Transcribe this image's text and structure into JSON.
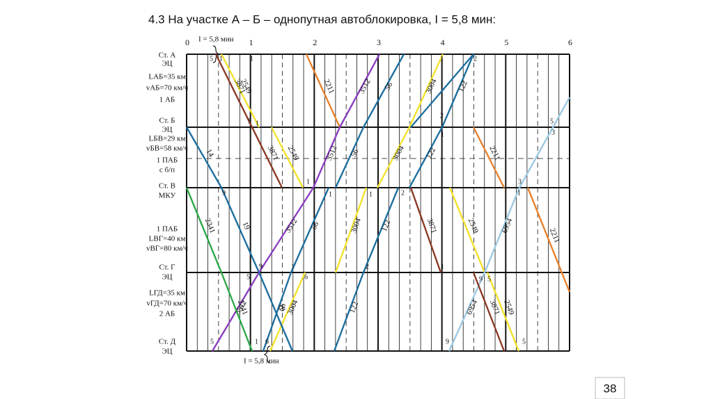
{
  "title": "4.3 На участке А – Б – однопутная автоблокировка, I = 5,8 мин:",
  "hours": [
    "0",
    "1",
    "2",
    "3",
    "4",
    "5",
    "6"
  ],
  "station_labels": [
    "Ст. А",
    "ЭЦ",
    "LАБ=35 км",
    "vАБ=70 км/ч",
    "1 АБ",
    "Ст. Б",
    "ЭЦ",
    "LБВ=29 км",
    "vБВ=58 км/ч",
    "1 ПАБ",
    "с б/п",
    "Ст. В",
    "МКУ",
    "1 ПАБ",
    "LВГ=40 км",
    "vВГ=80 км/ч",
    "Ст. Г",
    "ЭЦ",
    "LГД=35 км",
    "vГД=70 км/ч",
    "2 АБ",
    "Ст. Д",
    "ЭЦ"
  ],
  "interval_top": "I = 5,8 мин",
  "interval_bottom": "I = 5,8 мин",
  "train_labels": [
    "2549",
    "3871",
    "2211",
    "3512",
    "56",
    "3004",
    "122",
    "14",
    "3871",
    "2549",
    "3512",
    "56",
    "3004",
    "122",
    "2211",
    "2341",
    "19",
    "3512",
    "56",
    "3004",
    "122",
    "3871",
    "2549",
    "6954",
    "2211",
    "3512",
    "2341",
    "56",
    "3004",
    "19",
    "122",
    "6954",
    "3871",
    "2549"
  ],
  "markers": [
    "5",
    "1",
    "1",
    "2",
    "1",
    "5",
    "1",
    "2",
    "1",
    "5",
    "3",
    "9",
    "1",
    "1",
    "2",
    "1",
    "3",
    "1",
    "9",
    "1",
    "5",
    "6",
    "2",
    "1",
    "9",
    "5",
    "5",
    "1",
    "6",
    "9",
    "5"
  ],
  "page_number": "38"
}
